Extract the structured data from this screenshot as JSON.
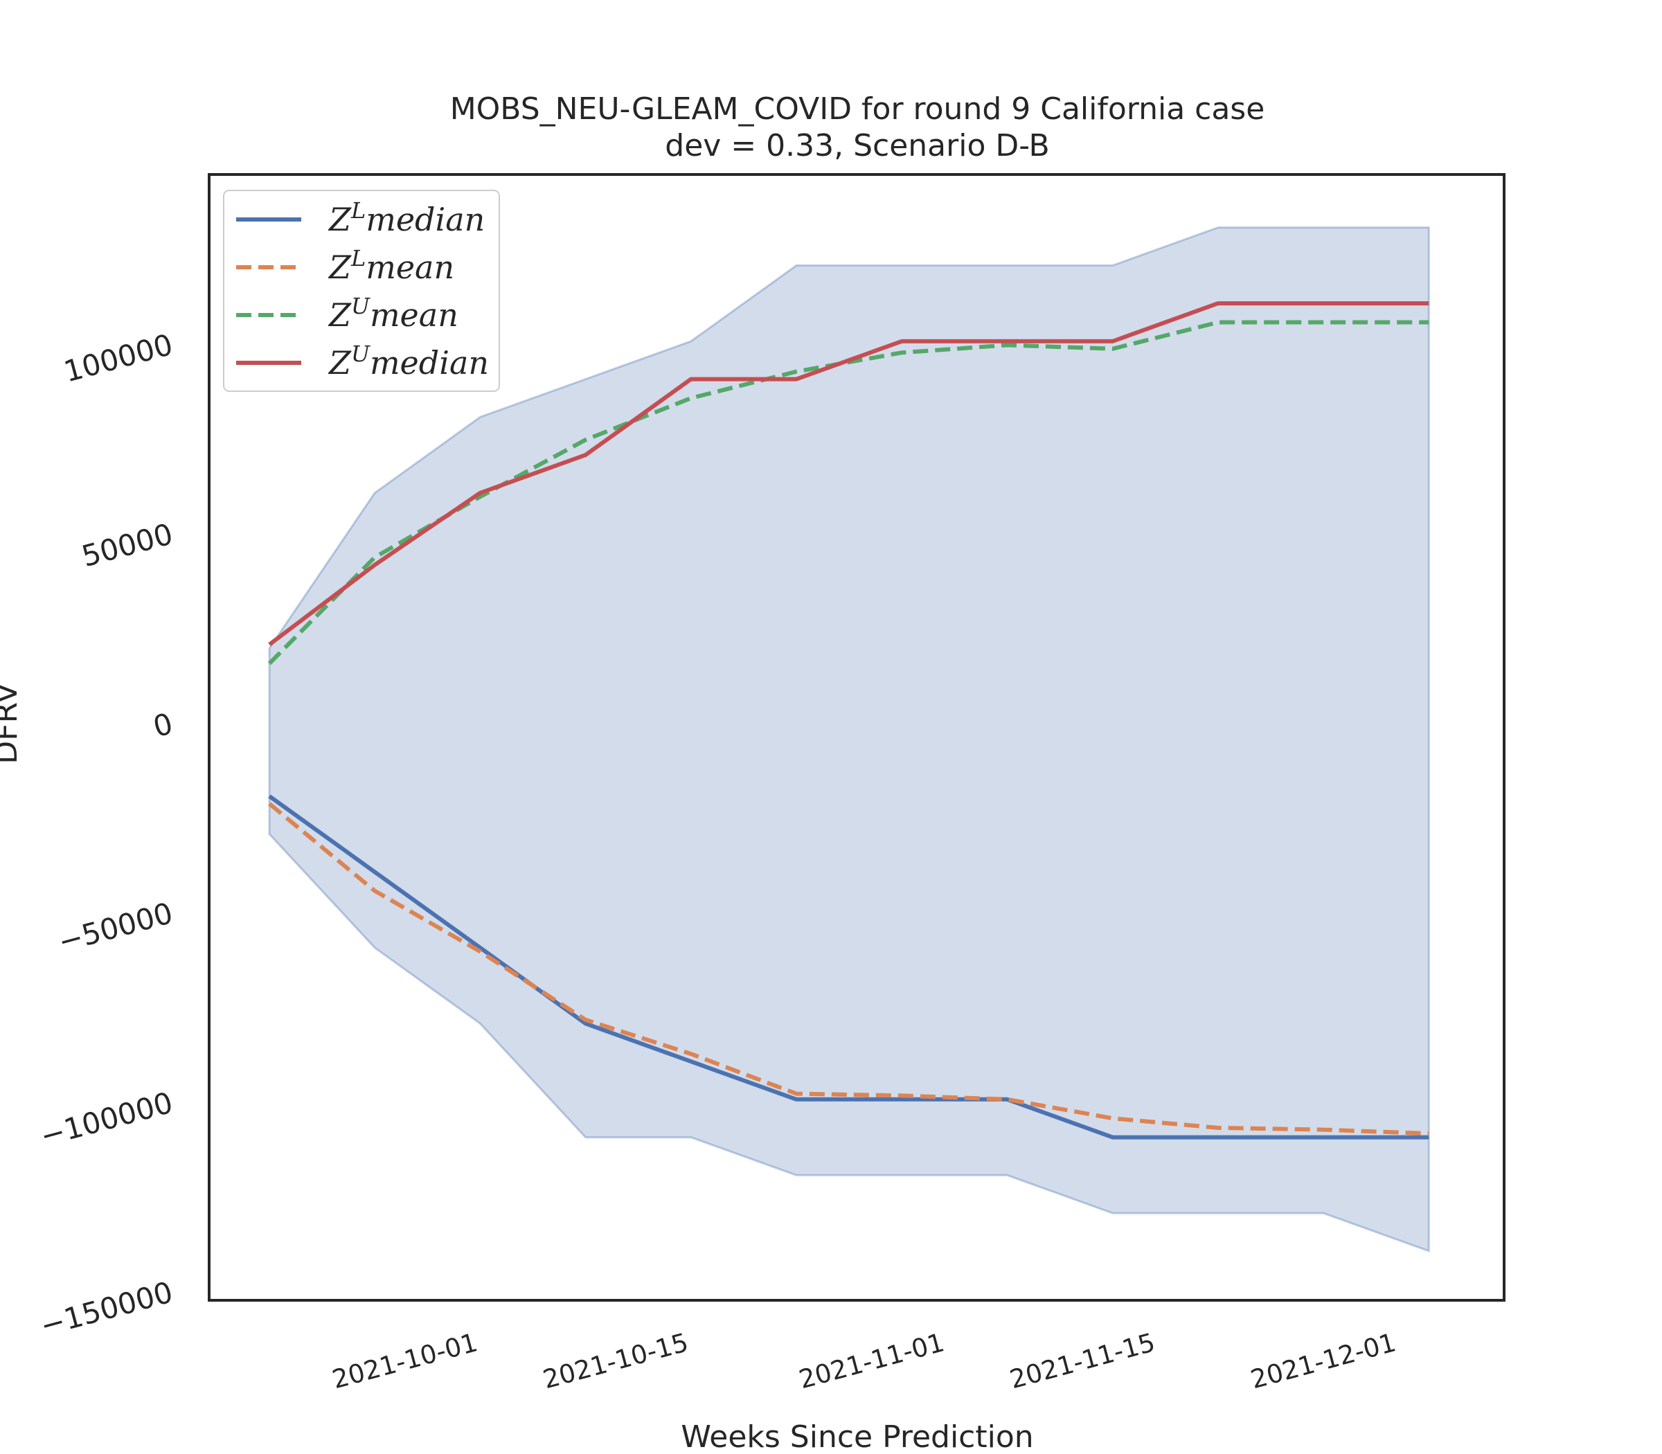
{
  "chart_data": {
    "type": "line",
    "title": "MOBS_NEU-GLEAM_COVID for round 9 California case",
    "subtitle": "dev = 0.33, Scenario D-B",
    "xlabel": "Weeks Since Prediction",
    "ylabel": "DFRV",
    "ylim": [
      -152000,
      145000
    ],
    "xlim": [
      "2021-09-14",
      "2021-12-09"
    ],
    "grid": false,
    "legend_position": "top-left",
    "x_ticks": [
      "2021-10-01",
      "2021-10-15",
      "2021-11-01",
      "2021-11-15",
      "2021-12-01"
    ],
    "y_ticks": [
      -150000,
      -100000,
      -50000,
      0,
      50000,
      100000
    ],
    "y_tick_labels": [
      "−150000",
      "−100000",
      "−50000",
      "0",
      "50000",
      "100000"
    ],
    "x": [
      "2021-09-18",
      "2021-09-25",
      "2021-10-02",
      "2021-10-09",
      "2021-10-16",
      "2021-10-23",
      "2021-10-30",
      "2021-11-06",
      "2021-11-13",
      "2021-11-20",
      "2021-11-27",
      "2021-12-04"
    ],
    "band": {
      "upper": [
        20000,
        61000,
        81000,
        91000,
        101000,
        121000,
        121000,
        121000,
        121000,
        131000,
        131000,
        131000
      ],
      "lower": [
        -29000,
        -59000,
        -79000,
        -109000,
        -109000,
        -119000,
        -119000,
        -119000,
        -129000,
        -129000,
        -129000,
        -139000
      ],
      "color": "#4c72b0"
    },
    "series": [
      {
        "name": "Z^L median",
        "style": "solid",
        "color": "#4c72b0",
        "values": [
          -19000,
          -39000,
          -59000,
          -79000,
          -89000,
          -99000,
          -99000,
          -99000,
          -109000,
          -109000,
          -109000,
          -109000
        ]
      },
      {
        "name": "Z^L mean",
        "style": "dashed",
        "color": "#dd8452",
        "values": [
          -21000,
          -44000,
          -60000,
          -78000,
          -87000,
          -97500,
          -98000,
          -99000,
          -104000,
          -106500,
          -107000,
          -108000
        ]
      },
      {
        "name": "Z^U mean",
        "style": "dashed",
        "color": "#55a868",
        "values": [
          16000,
          44000,
          60000,
          75000,
          86000,
          93000,
          98000,
          100000,
          99000,
          106000,
          106000,
          106000
        ]
      },
      {
        "name": "Z^U median",
        "style": "solid",
        "color": "#c44e52",
        "values": [
          21000,
          42000,
          61000,
          71000,
          91000,
          91000,
          101000,
          101000,
          101000,
          111000,
          111000,
          111000
        ]
      }
    ],
    "legend": [
      {
        "base": "Z",
        "sup": "L",
        "rest": "median"
      },
      {
        "base": "Z",
        "sup": "L",
        "rest": "mean"
      },
      {
        "base": "Z",
        "sup": "U",
        "rest": "mean"
      },
      {
        "base": "Z",
        "sup": "U",
        "rest": "median"
      }
    ]
  }
}
